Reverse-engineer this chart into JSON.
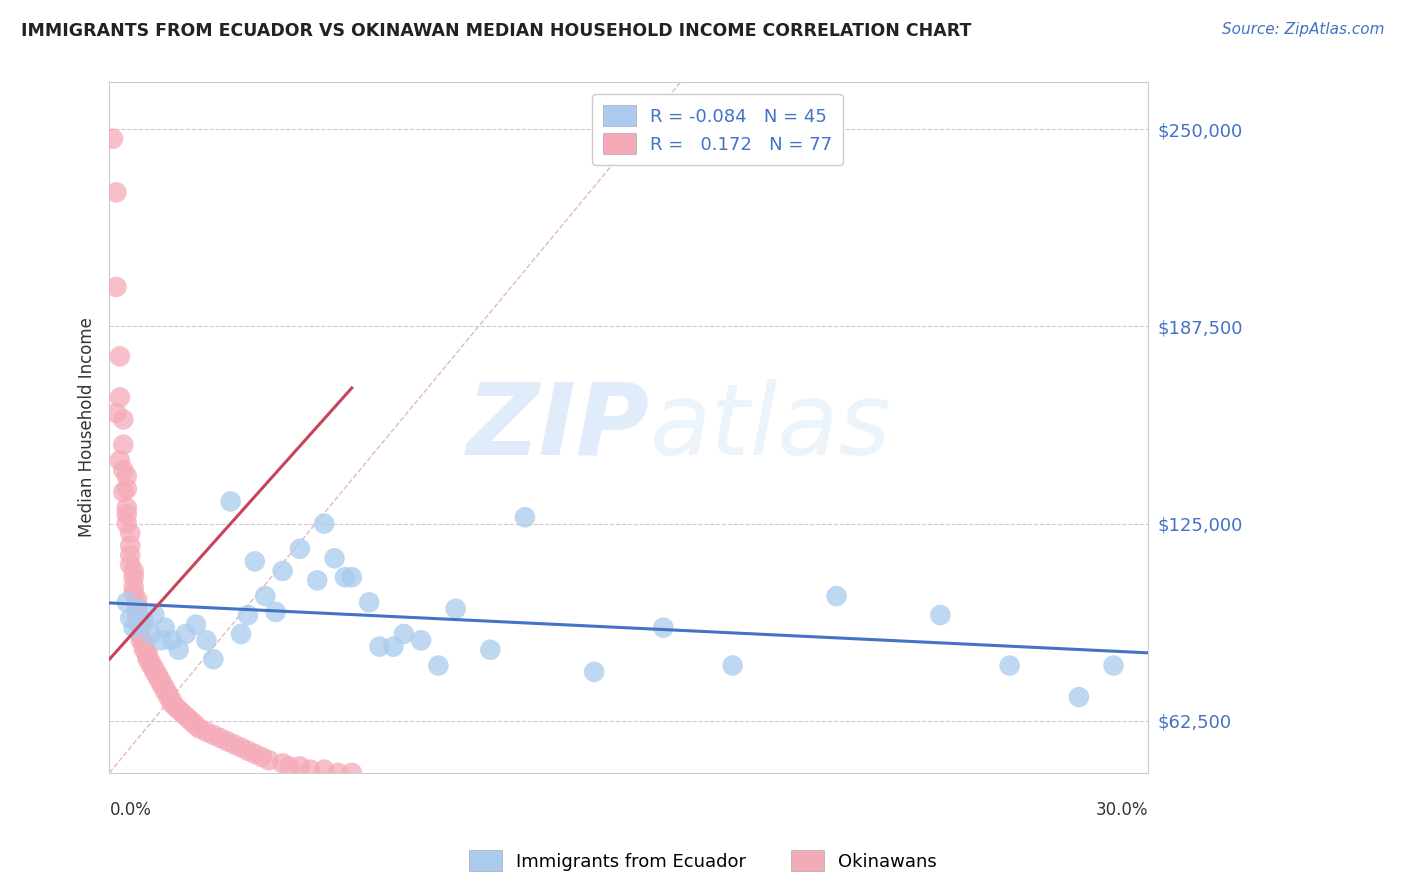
{
  "title": "IMMIGRANTS FROM ECUADOR VS OKINAWAN MEDIAN HOUSEHOLD INCOME CORRELATION CHART",
  "source": "Source: ZipAtlas.com",
  "ylabel": "Median Household Income",
  "yticks": [
    62500,
    125000,
    187500,
    250000
  ],
  "ytick_labels": [
    "$62,500",
    "$125,000",
    "$187,500",
    "$250,000"
  ],
  "xmin": 0.0,
  "xmax": 0.3,
  "ymin": 46000,
  "ymax": 265000,
  "watermark_zip": "ZIP",
  "watermark_atlas": "atlas",
  "series1_color": "#aacbee",
  "series1_edge": "#7aafd4",
  "series2_color": "#f5aab8",
  "series2_edge": "#e07090",
  "trendline1_color": "#4472c4",
  "trendline2_color": "#c8445a",
  "refline_color": "#e0b0b8",
  "blue_scatter_x": [
    0.005,
    0.006,
    0.007,
    0.008,
    0.01,
    0.012,
    0.013,
    0.015,
    0.016,
    0.018,
    0.02,
    0.022,
    0.025,
    0.028,
    0.03,
    0.035,
    0.038,
    0.04,
    0.042,
    0.045,
    0.048,
    0.05,
    0.055,
    0.06,
    0.062,
    0.065,
    0.068,
    0.07,
    0.075,
    0.078,
    0.082,
    0.085,
    0.09,
    0.095,
    0.1,
    0.11,
    0.12,
    0.14,
    0.16,
    0.18,
    0.21,
    0.24,
    0.26,
    0.28,
    0.29
  ],
  "blue_scatter_y": [
    100000,
    95000,
    92000,
    98000,
    94000,
    90000,
    96000,
    88000,
    92000,
    88000,
    85000,
    90000,
    93000,
    88000,
    82000,
    132000,
    90000,
    96000,
    113000,
    102000,
    97000,
    110000,
    117000,
    107000,
    125000,
    114000,
    108000,
    108000,
    100000,
    86000,
    86000,
    90000,
    88000,
    80000,
    98000,
    85000,
    127000,
    78000,
    92000,
    80000,
    102000,
    96000,
    80000,
    70000,
    80000
  ],
  "pink_scatter_x": [
    0.001,
    0.002,
    0.002,
    0.003,
    0.003,
    0.004,
    0.004,
    0.004,
    0.005,
    0.005,
    0.005,
    0.005,
    0.006,
    0.006,
    0.006,
    0.006,
    0.007,
    0.007,
    0.007,
    0.007,
    0.008,
    0.008,
    0.008,
    0.008,
    0.009,
    0.009,
    0.009,
    0.009,
    0.01,
    0.01,
    0.01,
    0.011,
    0.011,
    0.011,
    0.012,
    0.012,
    0.013,
    0.013,
    0.014,
    0.014,
    0.015,
    0.015,
    0.016,
    0.016,
    0.017,
    0.017,
    0.018,
    0.018,
    0.019,
    0.02,
    0.021,
    0.022,
    0.023,
    0.024,
    0.025,
    0.026,
    0.028,
    0.03,
    0.032,
    0.034,
    0.036,
    0.038,
    0.04,
    0.042,
    0.044,
    0.046,
    0.05,
    0.052,
    0.055,
    0.058,
    0.062,
    0.066,
    0.07,
    0.002,
    0.003,
    0.004,
    0.005
  ],
  "pink_scatter_y": [
    247000,
    230000,
    200000,
    178000,
    165000,
    158000,
    150000,
    142000,
    140000,
    136000,
    130000,
    125000,
    122000,
    118000,
    115000,
    112000,
    110000,
    108000,
    105000,
    103000,
    101000,
    99000,
    97000,
    95000,
    94000,
    92000,
    90000,
    88000,
    87000,
    86000,
    85000,
    84000,
    83000,
    82000,
    81000,
    80000,
    79000,
    78000,
    77000,
    76000,
    75000,
    74000,
    73000,
    72000,
    71000,
    70000,
    69000,
    68000,
    67000,
    66000,
    65000,
    64000,
    63000,
    62000,
    61000,
    60000,
    59000,
    58000,
    57000,
    56000,
    55000,
    54000,
    53000,
    52000,
    51000,
    50000,
    49000,
    48000,
    48000,
    47000,
    47000,
    46000,
    46000,
    160000,
    145000,
    135000,
    128000
  ]
}
